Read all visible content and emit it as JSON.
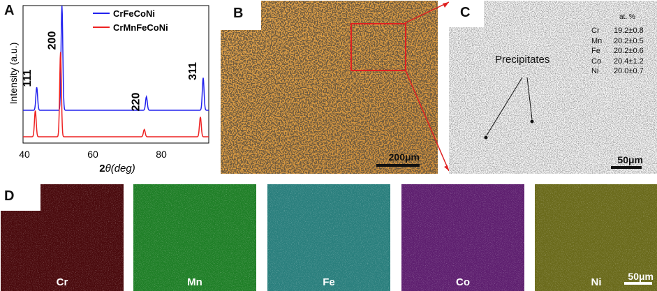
{
  "panels": {
    "a": "A",
    "b": "B",
    "c": "C",
    "d": "D"
  },
  "xrd": {
    "ylabel": "Intensity (a.u.)",
    "xlabel_prefix": "2",
    "xlabel_theta": "θ",
    "xlabel_deg": "(deg)",
    "xticks": [
      "40",
      "60",
      "80"
    ],
    "peaks": [
      "111",
      "200",
      "220",
      "311"
    ]
  },
  "chart_data": {
    "type": "line",
    "xlabel": "2θ(deg)",
    "ylabel": "Intensity (a.u.)",
    "xlim": [
      40,
      93
    ],
    "xticks": [
      40,
      60,
      80
    ],
    "legend_position": "top-right",
    "peak_labels": [
      {
        "hkl": "111",
        "x": 43.8
      },
      {
        "hkl": "200",
        "x": 50.9
      },
      {
        "hkl": "220",
        "x": 74.8
      },
      {
        "hkl": "311",
        "x": 91.0
      }
    ],
    "series": [
      {
        "name": "CrFeCoNi",
        "color": "#2222ee",
        "peaks_x": [
          43.9,
          51.1,
          75.2,
          91.4
        ],
        "peaks_height": [
          0.22,
          1.0,
          0.13,
          0.31
        ]
      },
      {
        "name": "CrMnFeCoNi",
        "color": "#ee2222",
        "peaks_x": [
          43.5,
          50.7,
          74.6,
          90.6
        ],
        "peaks_height": [
          0.25,
          0.81,
          0.07,
          0.19
        ]
      }
    ]
  },
  "optical": {
    "scale_bar": "200μm",
    "scale_color": "#111111"
  },
  "sem": {
    "precipitates_label": "Precipitates",
    "composition_header": "at. %",
    "composition": [
      {
        "el": "Cr",
        "val": "19.2±0.8"
      },
      {
        "el": "Mn",
        "val": "20.2±0.5"
      },
      {
        "el": "Fe",
        "val": "20.2±0.6"
      },
      {
        "el": "Co",
        "val": "20.4±1.2"
      },
      {
        "el": "Ni",
        "val": "20.0±0.7"
      }
    ],
    "scale_bar": "50μm"
  },
  "eds": {
    "maps": [
      {
        "el": "Cr",
        "color": "#4a0a0d"
      },
      {
        "el": "Mn",
        "color": "#1f7f27"
      },
      {
        "el": "Fe",
        "color": "#2a7f7d"
      },
      {
        "el": "Co",
        "color": "#5e1f6f"
      },
      {
        "el": "Ni",
        "color": "#6a6a1b"
      }
    ],
    "scale_bar": "50μm"
  },
  "colors": {
    "highlight": "#e02020"
  }
}
